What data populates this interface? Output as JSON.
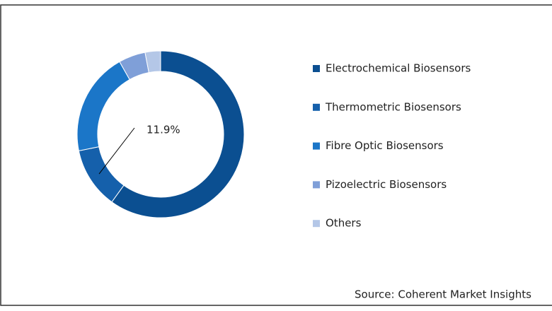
{
  "chart_data": {
    "type": "donut",
    "categories": [
      "Electrochemical Biosensors",
      "Thermometric Biosensors",
      "Fibre Optic Biosensors",
      "Pizoelectric Biosensors",
      "Others"
    ],
    "values": [
      60,
      11.9,
      20,
      5.2,
      3
    ],
    "value_labels": [
      null,
      "11.9%",
      null,
      null,
      null
    ],
    "colors": [
      "#0b4f91",
      "#1560ab",
      "#1b76c8",
      "#7f9fd8",
      "#b4c7e7"
    ],
    "source": "Source: Coherent Market Insights"
  }
}
